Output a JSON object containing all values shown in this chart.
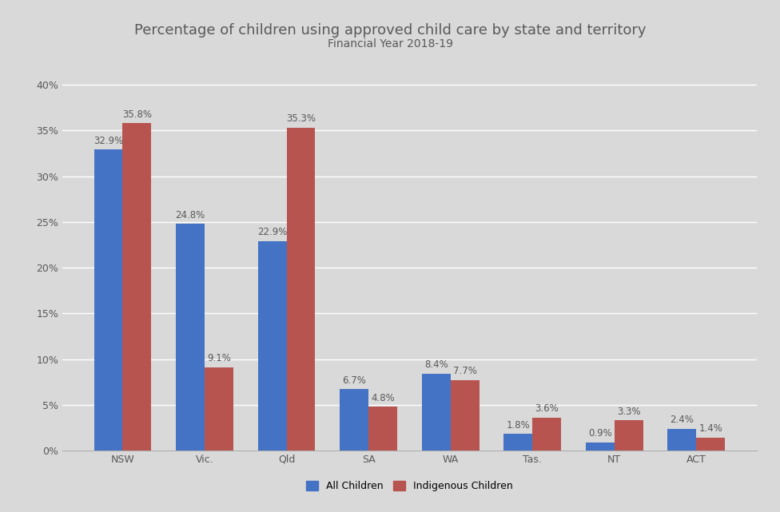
{
  "title": "Percentage of children using approved child care by state and territory",
  "subtitle": "Financial Year 2018-19",
  "categories": [
    "NSW",
    "Vic.",
    "Qld",
    "SA",
    "WA",
    "Tas.",
    "NT",
    "ACT"
  ],
  "all_children": [
    32.9,
    24.8,
    22.9,
    6.7,
    8.4,
    1.8,
    0.9,
    2.4
  ],
  "indigenous_children": [
    35.8,
    9.1,
    35.3,
    4.8,
    7.7,
    3.6,
    3.3,
    1.4
  ],
  "all_children_color": "#4472C4",
  "indigenous_children_color": "#B85450",
  "background_color": "#D9D9D9",
  "yticks": [
    0,
    5,
    10,
    15,
    20,
    25,
    30,
    35,
    40
  ],
  "ylim": [
    0,
    42
  ],
  "bar_width": 0.35,
  "legend_labels": [
    "All Children",
    "Indigenous Children"
  ],
  "title_fontsize": 13,
  "subtitle_fontsize": 10,
  "tick_fontsize": 9,
  "label_fontsize": 8.5,
  "text_color": "#595959"
}
